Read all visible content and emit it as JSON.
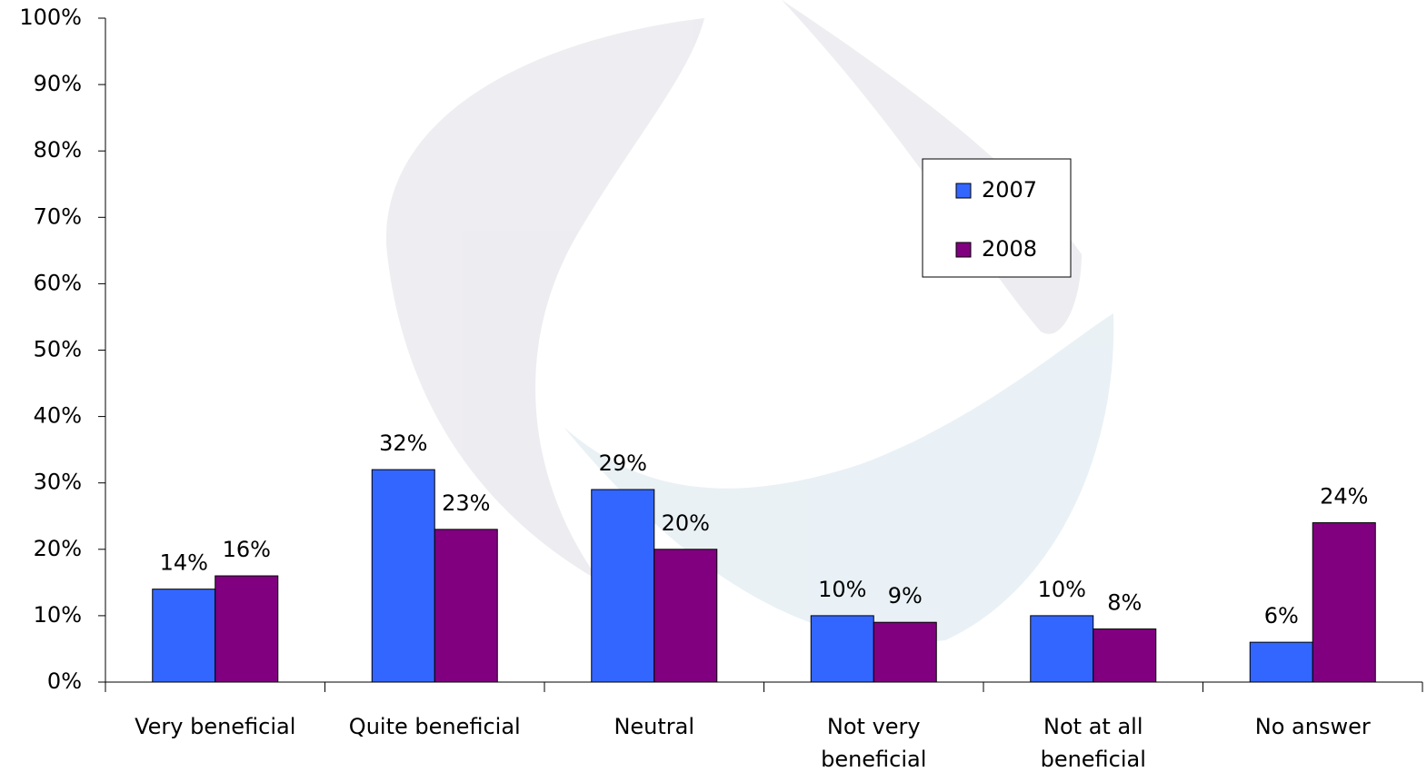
{
  "chart_data": {
    "type": "bar",
    "categories": [
      "Very beneficial",
      "Quite beneficial",
      "Neutral",
      "Not very beneficial",
      "Not at all beneficial",
      "No answer"
    ],
    "series": [
      {
        "name": "2007",
        "color": "#3366ff",
        "values": [
          14,
          32,
          29,
          10,
          10,
          6
        ],
        "value_labels": [
          "14%",
          "32%",
          "29%",
          "10%",
          "10%",
          "6%"
        ]
      },
      {
        "name": "2008",
        "color": "#800080",
        "values": [
          16,
          23,
          20,
          9,
          8,
          24
        ],
        "value_labels": [
          "16%",
          "23%",
          "20%",
          "9%",
          "8%",
          "24%"
        ]
      }
    ],
    "ylim": [
      0,
      100
    ],
    "yticks": [
      {
        "value": 0,
        "label": "0%"
      },
      {
        "value": 10,
        "label": "10%"
      },
      {
        "value": 20,
        "label": "20%"
      },
      {
        "value": 30,
        "label": "30%"
      },
      {
        "value": 40,
        "label": "40%"
      },
      {
        "value": 50,
        "label": "50%"
      },
      {
        "value": 60,
        "label": "60%"
      },
      {
        "value": 70,
        "label": "70%"
      },
      {
        "value": 80,
        "label": "80%"
      },
      {
        "value": 90,
        "label": "90%"
      },
      {
        "value": 100,
        "label": "100%"
      }
    ],
    "legend": "upper-right"
  }
}
